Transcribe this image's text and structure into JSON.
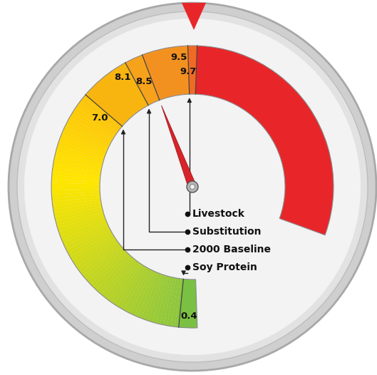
{
  "chart_data": {
    "type": "gauge",
    "ticks": [
      0.4,
      7.0,
      8.1,
      8.5,
      9.5,
      9.7
    ],
    "needle": 8.5,
    "markers": [
      {
        "label": "Livestock",
        "value": 9.5
      },
      {
        "label": "Substitution",
        "value": 8.1
      },
      {
        "label": "2000 Baseline",
        "value": 7.0
      },
      {
        "label": "Soy Protein",
        "value": 0.4
      }
    ]
  }
}
